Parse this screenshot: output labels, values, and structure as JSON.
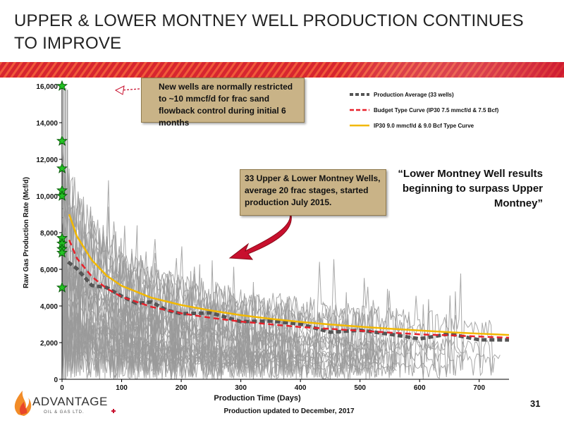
{
  "slide": {
    "title": "UPPER & LOWER MONTNEY WELL PRODUCTION CONTINUES TO IMPROVE",
    "page_number": "31",
    "footnote": "Production updated to December, 2017",
    "quote": "“Lower Montney Well results beginning to surpass Upper Montney”",
    "callout_restricted": "New wells are normally restricted to ~10 mmcf/d for frac sand flowback control during initial 6 months",
    "callout_wells": "33 Upper & Lower Montney Wells, average 20 frac stages, started production July 2015.",
    "logo_text": "ADVANTAGE",
    "logo_sub": "OIL & GAS LTD.",
    "colors": {
      "band_left": "#e8462a",
      "band_right": "#c8102e",
      "accent_arrow": "#c8102e",
      "star": "#22c322"
    }
  },
  "chart_data": {
    "type": "line",
    "xlabel": "Production Time (Days)",
    "ylabel": "Raw Gas Production Rate (Mcf/d)",
    "xlim": [
      0,
      750
    ],
    "ylim": [
      0,
      16000
    ],
    "x_ticks": [
      0,
      100,
      200,
      300,
      400,
      500,
      600,
      700
    ],
    "y_ticks": [
      0,
      2000,
      4000,
      6000,
      8000,
      10000,
      12000,
      14000,
      16000
    ],
    "x_tick_labels": [
      "0",
      "100",
      "200",
      "300",
      "400",
      "500",
      "600",
      "700"
    ],
    "y_tick_labels": [
      "0",
      "2,000",
      "4,000",
      "6,000",
      "8,000",
      "10,000",
      "12,000",
      "14,000",
      "16,000"
    ],
    "legend_position": "top-right",
    "series": [
      {
        "name": "Production Average (33 wells)",
        "color": "#555555",
        "style": "dashed-thick",
        "x": [
          10,
          25,
          50,
          75,
          100,
          125,
          150,
          175,
          200,
          250,
          300,
          350,
          400,
          450,
          500,
          550,
          600,
          650,
          700,
          750
        ],
        "y": [
          6400,
          5900,
          5300,
          4900,
          4500,
          4300,
          4050,
          3850,
          3650,
          3450,
          3300,
          3150,
          2900,
          2750,
          2550,
          2450,
          2350,
          2300,
          2250,
          2200
        ]
      },
      {
        "name": "Budget Type Curve (IP30 7.5 mmcf/d & 7.5 Bcf)",
        "color": "#e8212b",
        "style": "dashed",
        "x": [
          12,
          25,
          50,
          75,
          100,
          150,
          200,
          250,
          300,
          350,
          400,
          450,
          500,
          550,
          600,
          650,
          700,
          750
        ],
        "y": [
          7600,
          6600,
          5600,
          4950,
          4500,
          3950,
          3600,
          3350,
          3150,
          3000,
          2850,
          2750,
          2650,
          2550,
          2450,
          2400,
          2330,
          2270
        ]
      },
      {
        "name": "IP30 9.0 mmcf/d & 9.0 Bcf Type Curve",
        "color": "#f2b800",
        "style": "solid",
        "x": [
          12,
          25,
          50,
          75,
          100,
          150,
          200,
          250,
          300,
          350,
          400,
          450,
          500,
          550,
          600,
          650,
          700,
          750
        ],
        "y": [
          9000,
          7800,
          6500,
          5650,
          5100,
          4450,
          4050,
          3750,
          3500,
          3300,
          3130,
          2990,
          2870,
          2760,
          2660,
          2570,
          2490,
          2420
        ]
      }
    ],
    "initial_rate_markers": {
      "x": 0,
      "y": [
        16000,
        13000,
        11500,
        10300,
        10000,
        7700,
        7400,
        7100,
        6900,
        5000
      ]
    },
    "individual_wells_count": 33,
    "individual_wells_color": "#9a9a9a"
  }
}
